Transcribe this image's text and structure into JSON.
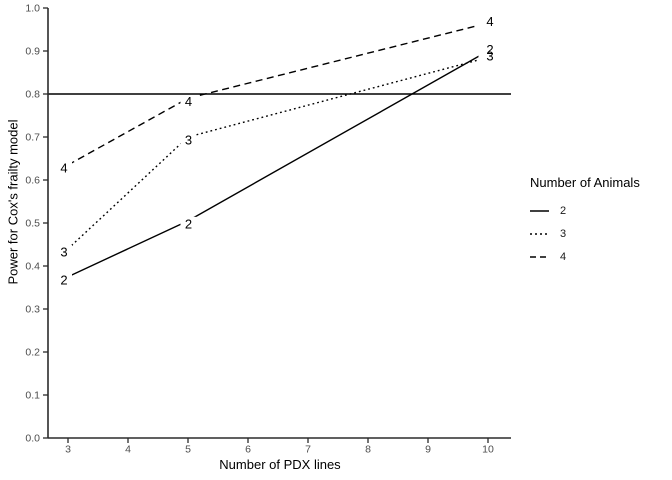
{
  "chart_data": {
    "type": "line",
    "title": "",
    "xlabel": "Number of PDX lines",
    "ylabel": "Power for Cox's frailty model",
    "x": [
      3,
      5,
      10
    ],
    "series": [
      {
        "name": "2",
        "linetype": "solid",
        "values": [
          0.375,
          0.505,
          0.9
        ]
      },
      {
        "name": "3",
        "linetype": "dotted",
        "values": [
          0.44,
          0.7,
          0.885
        ]
      },
      {
        "name": "4",
        "linetype": "dashed",
        "values": [
          0.635,
          0.79,
          0.965
        ]
      }
    ],
    "reference_line_y": 0.8,
    "xticks": [
      "3",
      "4",
      "5",
      "6",
      "7",
      "8",
      "9",
      "10"
    ],
    "yticks": [
      "0.0",
      "0.1",
      "0.2",
      "0.3",
      "0.4",
      "0.5",
      "0.6",
      "0.7",
      "0.8",
      "0.9",
      "1.0"
    ],
    "xlim": [
      3,
      10
    ],
    "ylim": [
      0.0,
      1.0
    ],
    "grid": false,
    "direct_labels": true,
    "legend": {
      "title": "Number of Animals",
      "position": "right",
      "entries": [
        {
          "label": "2",
          "linetype": "solid"
        },
        {
          "label": "3",
          "linetype": "dotted"
        },
        {
          "label": "4",
          "linetype": "dashed"
        }
      ]
    },
    "colors": {
      "line": "#000000",
      "axis": "#2b2b2b",
      "tick_label": "#4d4d4d",
      "background": "#ffffff"
    }
  }
}
